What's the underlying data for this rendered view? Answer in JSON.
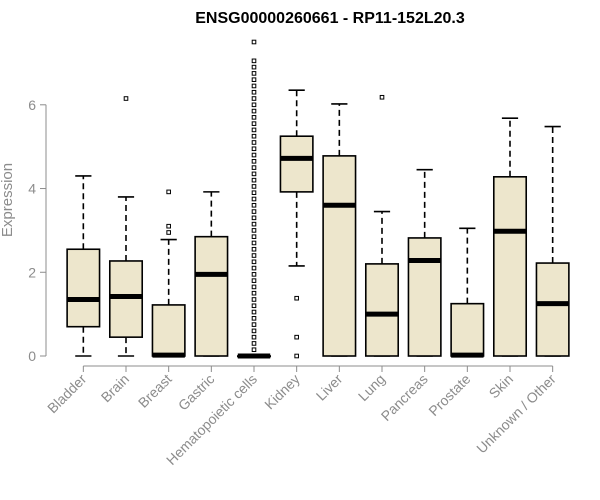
{
  "chart_data": {
    "type": "box",
    "title": "ENSG00000260661 - RP11-152L20.3",
    "xlabel": "",
    "ylabel": "Expression",
    "ylim": [
      0,
      7.5
    ],
    "yticks": [
      0,
      2,
      4,
      6
    ],
    "box_fill": "#ede6cc",
    "categories": [
      "Bladder",
      "Brain",
      "Breast",
      "Gastric",
      "Hematopoietic cells",
      "Kidney",
      "Liver",
      "Lung",
      "Pancreas",
      "Prostate",
      "Skin",
      "Unknown / Other"
    ],
    "boxes": [
      {
        "min": 0.0,
        "q1": 0.7,
        "median": 1.35,
        "q3": 2.55,
        "max": 4.3,
        "outliers": []
      },
      {
        "min": 0.0,
        "q1": 0.45,
        "median": 1.42,
        "q3": 2.27,
        "max": 3.8,
        "outliers": [
          6.15
        ]
      },
      {
        "min": 0.0,
        "q1": 0.0,
        "median": 0.02,
        "q3": 1.22,
        "max": 2.78,
        "outliers": [
          2.95,
          3.1,
          3.92
        ]
      },
      {
        "min": 0.0,
        "q1": 0.0,
        "median": 1.95,
        "q3": 2.85,
        "max": 3.92,
        "outliers": []
      },
      {
        "min": 0.0,
        "q1": 0.0,
        "median": 0.0,
        "q3": 0.0,
        "max": 0.0,
        "outliers": [
          0.15,
          0.3,
          0.45,
          0.6,
          0.75,
          0.9,
          1.05,
          1.2,
          1.35,
          1.5,
          1.65,
          1.8,
          1.95,
          2.1,
          2.25,
          2.4,
          2.55,
          2.7,
          2.85,
          3.0,
          3.15,
          3.3,
          3.45,
          3.6,
          3.75,
          3.9,
          4.05,
          4.2,
          4.35,
          4.5,
          4.65,
          4.8,
          4.95,
          5.1,
          5.25,
          5.4,
          5.55,
          5.7,
          5.85,
          6.0,
          6.15,
          6.3,
          6.45,
          6.6,
          6.75,
          6.9,
          7.05,
          7.5
        ]
      },
      {
        "min": 2.15,
        "q1": 3.92,
        "median": 4.72,
        "q3": 5.25,
        "max": 6.35,
        "outliers": [
          0.0,
          0.45,
          1.38
        ]
      },
      {
        "min": 0.0,
        "q1": 0.0,
        "median": 3.6,
        "q3": 4.78,
        "max": 6.02,
        "outliers": []
      },
      {
        "min": 0.0,
        "q1": 0.0,
        "median": 1.0,
        "q3": 2.2,
        "max": 3.45,
        "outliers": [
          6.18
        ]
      },
      {
        "min": 0.0,
        "q1": 0.0,
        "median": 2.28,
        "q3": 2.82,
        "max": 4.45,
        "outliers": []
      },
      {
        "min": 0.0,
        "q1": 0.0,
        "median": 0.02,
        "q3": 1.25,
        "max": 3.05,
        "outliers": []
      },
      {
        "min": 0.0,
        "q1": 0.0,
        "median": 2.98,
        "q3": 4.28,
        "max": 5.68,
        "outliers": []
      },
      {
        "min": 0.0,
        "q1": 0.0,
        "median": 1.25,
        "q3": 2.22,
        "max": 5.48,
        "outliers": []
      }
    ]
  }
}
